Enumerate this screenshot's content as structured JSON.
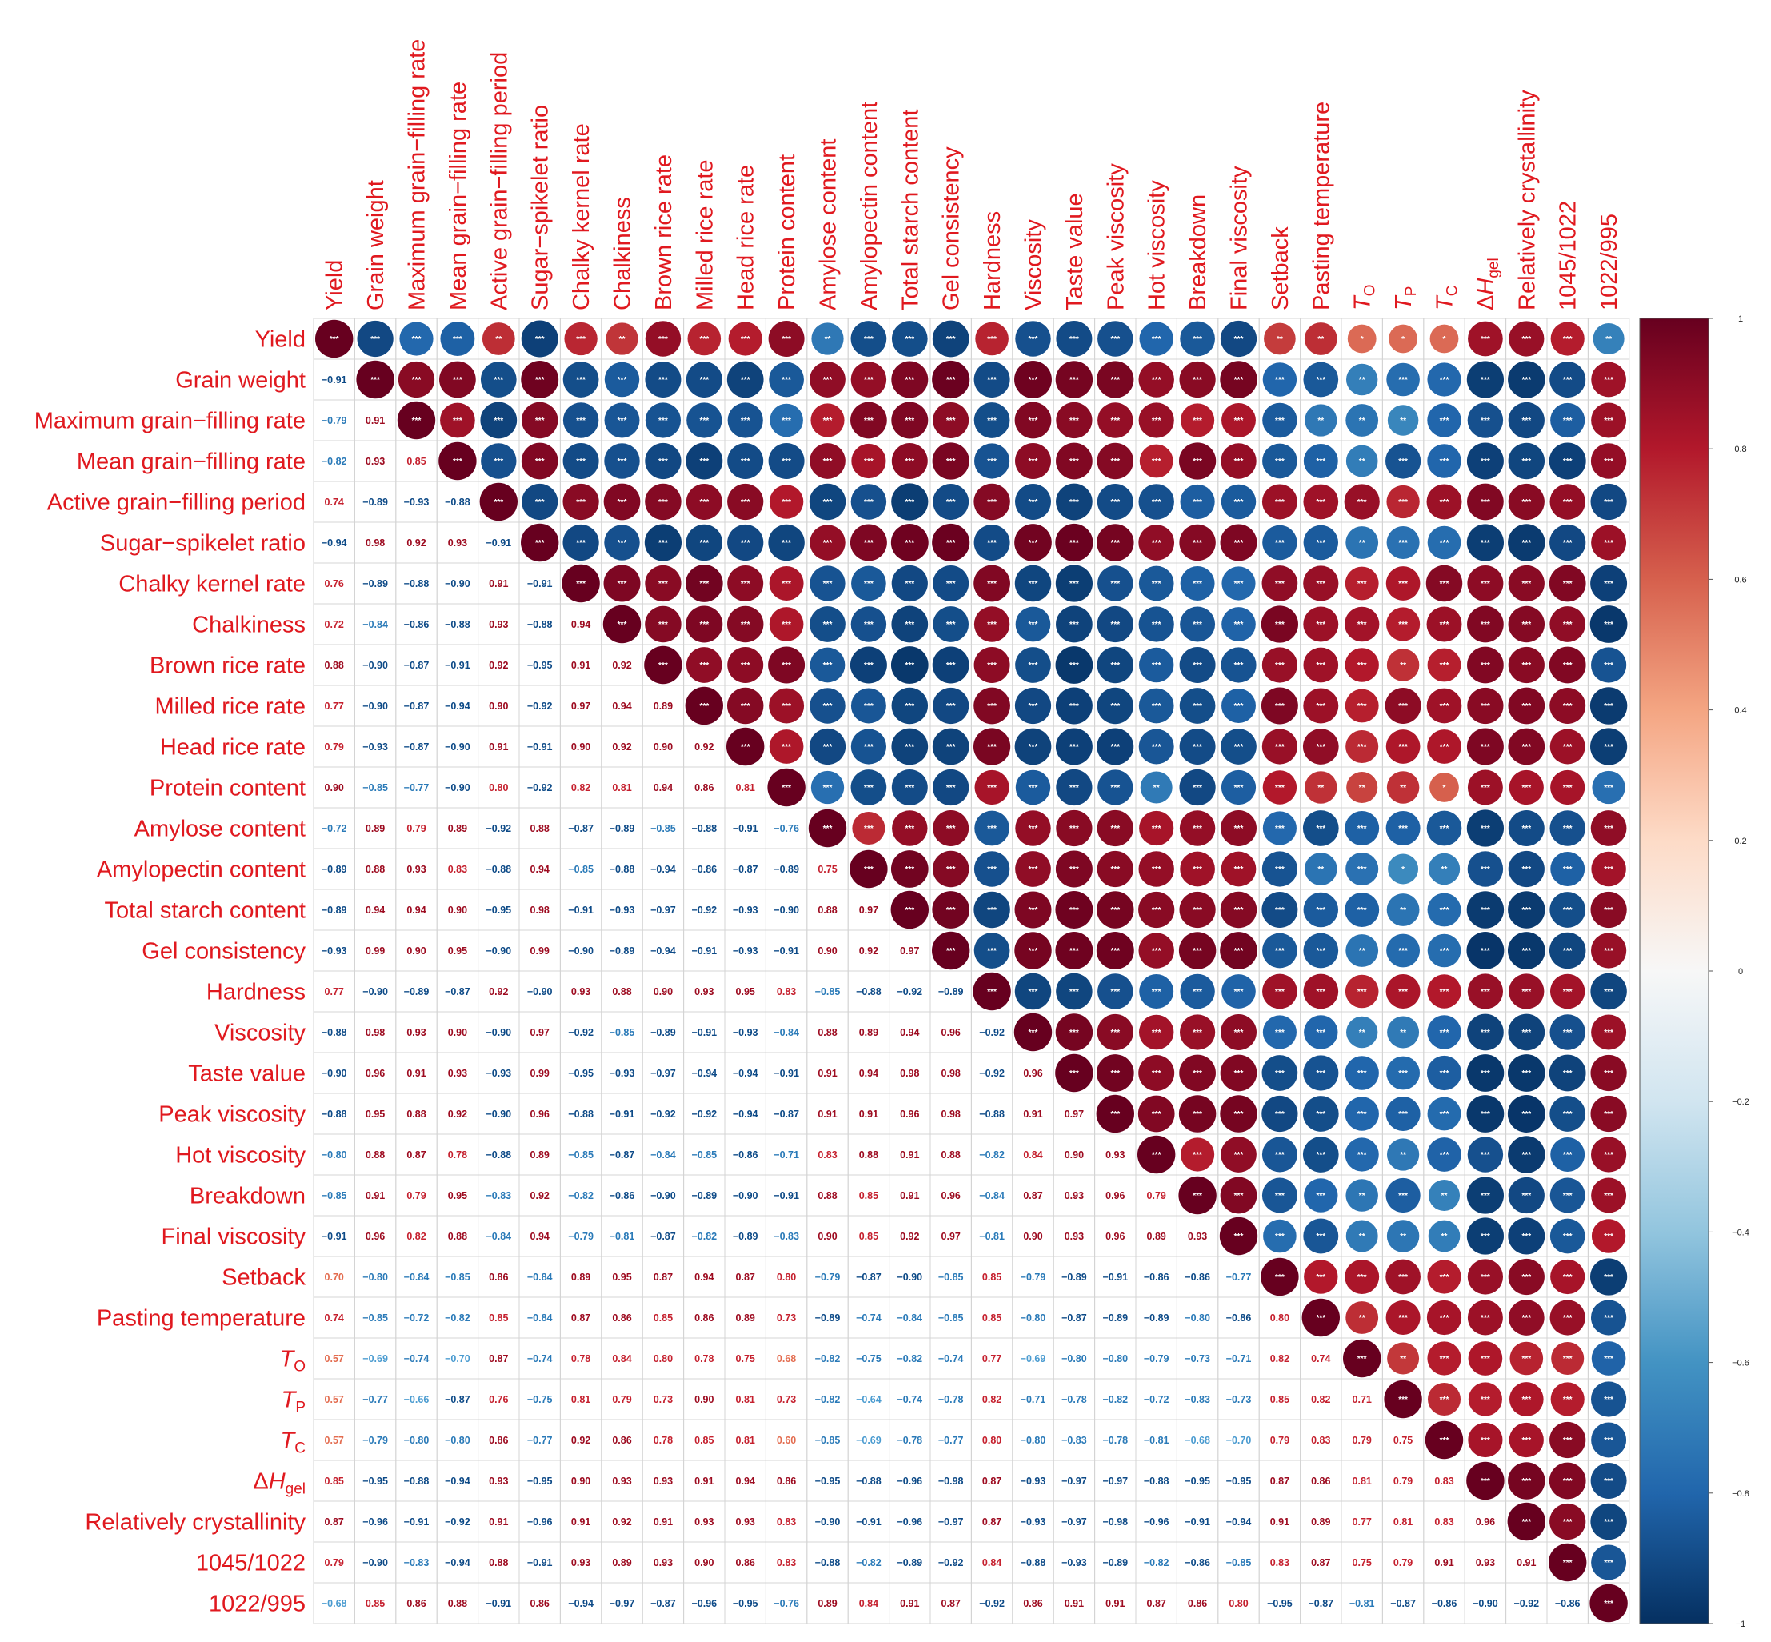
{
  "chart_data": {
    "type": "heatmap",
    "variables": [
      "Yield",
      "Grain weight",
      "Maximum grain−filling rate",
      "Mean grain−filling rate",
      "Active grain−filling period",
      "Sugar−spikelet ratio",
      "Chalky kernel rate",
      "Chalkiness",
      "Brown rice rate",
      "Milled rice rate",
      "Head rice rate",
      "Protein content",
      "Amylose content",
      "Amylopectin content",
      "Total starch content",
      "Gel consistency",
      "Hardness",
      "Viscosity",
      "Taste value",
      "Peak viscosity",
      "Hot viscosity",
      "Breakdown",
      "Final viscosity",
      "Setback",
      "Pasting temperature",
      "TO",
      "TP",
      "TC",
      "ΔHgel",
      "Relatively crystallinity",
      "1045/1022",
      "1022/995"
    ],
    "lower_triangle_rows": [
      [],
      [
        "-0.91"
      ],
      [
        "-0.79",
        "0.91"
      ],
      [
        "-0.82",
        "0.93",
        "0.85"
      ],
      [
        "0.74",
        "-0.89",
        "-0.93",
        "-0.88"
      ],
      [
        "-0.94",
        "0.98",
        "0.92",
        "0.93",
        "-0.91"
      ],
      [
        "0.76",
        "-0.89",
        "-0.88",
        "-0.90",
        "0.91",
        "-0.91"
      ],
      [
        "0.72",
        "-0.84",
        "-0.86",
        "-0.88",
        "0.93",
        "-0.88",
        "0.94"
      ],
      [
        "0.88",
        "-0.90",
        "-0.87",
        "-0.91",
        "0.92",
        "-0.95",
        "0.91",
        "0.92"
      ],
      [
        "0.77",
        "-0.90",
        "-0.87",
        "-0.94",
        "0.90",
        "-0.92",
        "0.97",
        "0.94",
        "0.89"
      ],
      [
        "0.79",
        "-0.93",
        "-0.87",
        "-0.90",
        "0.91",
        "-0.91",
        "0.90",
        "0.92",
        "0.90",
        "0.92"
      ],
      [
        "0.90",
        "-0.85",
        "-0.77",
        "-0.90",
        "0.80",
        "-0.92",
        "0.82",
        "0.81",
        "0.94",
        "0.86",
        "0.81"
      ],
      [
        "-0.72",
        "0.89",
        "0.79",
        "0.89",
        "-0.92",
        "0.88",
        "-0.87",
        "-0.89",
        "-0.85",
        "-0.88",
        "-0.91",
        "-0.76"
      ],
      [
        "-0.89",
        "0.88",
        "0.93",
        "0.83",
        "-0.88",
        "0.94",
        "-0.85",
        "-0.88",
        "-0.94",
        "-0.86",
        "-0.87",
        "-0.89",
        "0.75"
      ],
      [
        "-0.89",
        "0.94",
        "0.94",
        "0.90",
        "-0.95",
        "0.98",
        "-0.91",
        "-0.93",
        "-0.97",
        "-0.92",
        "-0.93",
        "-0.90",
        "0.88",
        "0.97"
      ],
      [
        "-0.93",
        "0.99",
        "0.90",
        "0.95",
        "-0.90",
        "0.99",
        "-0.90",
        "-0.89",
        "-0.94",
        "-0.91",
        "-0.93",
        "-0.91",
        "0.90",
        "0.92",
        "0.97"
      ],
      [
        "0.77",
        "-0.90",
        "-0.89",
        "-0.87",
        "0.92",
        "-0.90",
        "0.93",
        "0.88",
        "0.90",
        "0.93",
        "0.95",
        "0.83",
        "-0.85",
        "-0.88",
        "-0.92",
        "-0.89"
      ],
      [
        "-0.88",
        "0.98",
        "0.93",
        "0.90",
        "-0.90",
        "0.97",
        "-0.92",
        "-0.85",
        "-0.89",
        "-0.91",
        "-0.93",
        "-0.84",
        "0.88",
        "0.89",
        "0.94",
        "0.96",
        "-0.92"
      ],
      [
        "-0.90",
        "0.96",
        "0.91",
        "0.93",
        "-0.93",
        "0.99",
        "-0.95",
        "-0.93",
        "-0.97",
        "-0.94",
        "-0.94",
        "-0.91",
        "0.91",
        "0.94",
        "0.98",
        "0.98",
        "-0.92",
        "0.96"
      ],
      [
        "-0.88",
        "0.95",
        "0.88",
        "0.92",
        "-0.90",
        "0.96",
        "-0.88",
        "-0.91",
        "-0.92",
        "-0.92",
        "-0.94",
        "-0.87",
        "0.91",
        "0.91",
        "0.96",
        "0.98",
        "-0.88",
        "0.91",
        "0.97"
      ],
      [
        "-0.80",
        "0.88",
        "0.87",
        "0.78",
        "-0.88",
        "0.89",
        "-0.85",
        "-0.87",
        "-0.84",
        "-0.85",
        "-0.86",
        "-0.71",
        "0.83",
        "0.88",
        "0.91",
        "0.88",
        "-0.82",
        "0.84",
        "0.90",
        "0.93"
      ],
      [
        "-0.85",
        "0.91",
        "0.79",
        "0.95",
        "-0.83",
        "0.92",
        "-0.82",
        "-0.86",
        "-0.90",
        "-0.89",
        "-0.90",
        "-0.91",
        "0.88",
        "0.85",
        "0.91",
        "0.96",
        "-0.84",
        "0.87",
        "0.93",
        "0.96",
        "0.79"
      ],
      [
        "-0.91",
        "0.96",
        "0.82",
        "0.88",
        "-0.84",
        "0.94",
        "-0.79",
        "-0.81",
        "-0.87",
        "-0.82",
        "-0.89",
        "-0.83",
        "0.90",
        "0.85",
        "0.92",
        "0.97",
        "-0.81",
        "0.90",
        "0.93",
        "0.96",
        "0.89",
        "0.93"
      ],
      [
        "0.70",
        "-0.80",
        "-0.84",
        "-0.85",
        "0.86",
        "-0.84",
        "0.89",
        "0.95",
        "0.87",
        "0.94",
        "0.87",
        "0.80",
        "-0.79",
        "-0.87",
        "-0.90",
        "-0.85",
        "0.85",
        "-0.79",
        "-0.89",
        "-0.91",
        "-0.86",
        "-0.86",
        "-0.77"
      ],
      [
        "0.74",
        "-0.85",
        "-0.72",
        "-0.82",
        "0.85",
        "-0.84",
        "0.87",
        "0.86",
        "0.85",
        "0.86",
        "0.89",
        "0.73",
        "-0.89",
        "-0.74",
        "-0.84",
        "-0.85",
        "0.85",
        "-0.80",
        "-0.87",
        "-0.89",
        "-0.89",
        "-0.80",
        "-0.86",
        "0.80"
      ],
      [
        "0.57",
        "-0.69",
        "-0.74",
        "-0.70",
        "0.87",
        "-0.74",
        "0.78",
        "0.84",
        "0.80",
        "0.78",
        "0.75",
        "0.68",
        "-0.82",
        "-0.75",
        "-0.82",
        "-0.74",
        "0.77",
        "-0.69",
        "-0.80",
        "-0.80",
        "-0.79",
        "-0.73",
        "-0.71",
        "0.82",
        "0.74"
      ],
      [
        "0.57",
        "-0.77",
        "-0.66",
        "-0.87",
        "0.76",
        "-0.75",
        "0.81",
        "0.79",
        "0.73",
        "0.90",
        "0.81",
        "0.73",
        "-0.82",
        "-0.64",
        "-0.74",
        "-0.78",
        "0.82",
        "-0.71",
        "-0.78",
        "-0.82",
        "-0.72",
        "-0.83",
        "-0.73",
        "0.85",
        "0.82",
        "0.71"
      ],
      [
        "0.57",
        "-0.79",
        "-0.80",
        "-0.80",
        "0.86",
        "-0.77",
        "0.92",
        "0.86",
        "0.78",
        "0.85",
        "0.81",
        "0.60",
        "-0.85",
        "-0.69",
        "-0.78",
        "-0.77",
        "0.80",
        "-0.80",
        "-0.83",
        "-0.78",
        "-0.81",
        "-0.68",
        "-0.70",
        "0.79",
        "0.83",
        "0.79",
        "0.75"
      ],
      [
        "0.85",
        "-0.95",
        "-0.88",
        "-0.94",
        "0.93",
        "-0.95",
        "0.90",
        "0.93",
        "0.93",
        "0.91",
        "0.94",
        "0.86",
        "-0.95",
        "-0.88",
        "-0.96",
        "-0.98",
        "0.87",
        "-0.93",
        "-0.97",
        "-0.97",
        "-0.88",
        "-0.95",
        "-0.95",
        "0.87",
        "0.86",
        "0.81",
        "0.79",
        "0.83"
      ],
      [
        "0.87",
        "-0.96",
        "-0.91",
        "-0.92",
        "0.91",
        "-0.96",
        "0.91",
        "0.92",
        "0.91",
        "0.93",
        "0.93",
        "0.83",
        "-0.90",
        "-0.91",
        "-0.96",
        "-0.97",
        "0.87",
        "-0.93",
        "-0.97",
        "-0.98",
        "-0.96",
        "-0.91",
        "-0.94",
        "0.91",
        "0.89",
        "0.77",
        "0.81",
        "0.83",
        "0.96"
      ],
      [
        "0.79",
        "-0.90",
        "-0.83",
        "-0.94",
        "0.88",
        "-0.91",
        "0.93",
        "0.89",
        "0.93",
        "0.90",
        "0.86",
        "0.83",
        "-0.88",
        "-0.82",
        "-0.89",
        "-0.92",
        "0.84",
        "-0.88",
        "-0.93",
        "-0.89",
        "-0.82",
        "-0.86",
        "-0.85",
        "0.83",
        "0.87",
        "0.75",
        "0.79",
        "0.91",
        "0.93",
        "0.91"
      ],
      [
        "-0.68",
        "0.85",
        "0.86",
        "0.88",
        "-0.91",
        "0.86",
        "-0.94",
        "-0.97",
        "-0.87",
        "-0.96",
        "-0.95",
        "-0.76",
        "0.89",
        "0.84",
        "0.91",
        "0.87",
        "-0.92",
        "0.86",
        "0.91",
        "0.91",
        "0.87",
        "0.86",
        "0.80",
        "-0.95",
        "-0.87",
        "-0.81",
        "-0.87",
        "-0.86",
        "-0.90",
        "-0.92",
        "-0.86"
      ]
    ],
    "significance_marks": {
      "strong": "***",
      "medium": "**",
      "weak": "*"
    },
    "colorbar_ticks": [
      "1",
      "0.8",
      "0.6",
      "0.4",
      "0.2",
      "0",
      "-0.2",
      "-0.4",
      "-0.6",
      "-0.8",
      "-1"
    ],
    "colorbar_range": [
      -1,
      1
    ],
    "colors": {
      "high": "#67001f",
      "mid": "#f7f7f7",
      "low": "#053061",
      "label": "#e0191f"
    }
  }
}
